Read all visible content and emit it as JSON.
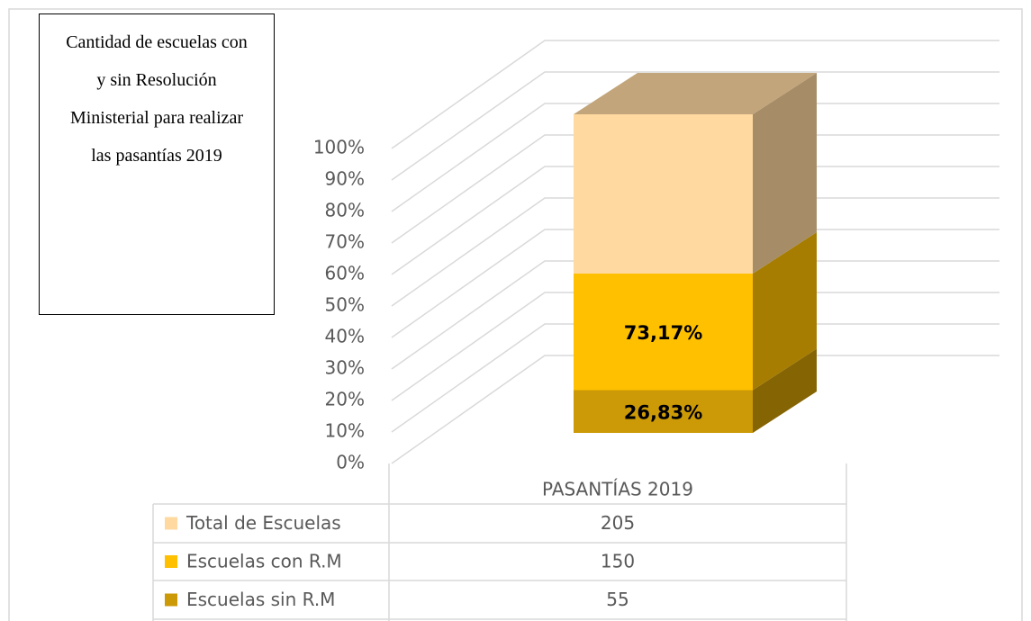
{
  "chart_data": {
    "type": "bar",
    "stacking": "percent",
    "title": "Cantidad de escuelas con y sin Resolución Ministerial para realizar las pasantías 2019",
    "categories": [
      "PASANTÍAS 2019"
    ],
    "series": [
      {
        "name": "Total de Escuelas",
        "color": "#ffd9a0",
        "values": [
          205
        ]
      },
      {
        "name": "Escuelas con R.M",
        "color": "#ffc000",
        "values": [
          150
        ],
        "data_labels": [
          {
            "value": 73.17,
            "label": "73,17%"
          }
        ]
      },
      {
        "name": "Escuelas sin R.M",
        "color": "#cc9a06",
        "values": [
          55
        ],
        "data_labels": [
          {
            "value": 26.83,
            "label": "26,83%"
          }
        ]
      }
    ],
    "ylim": [
      0,
      100
    ],
    "yticks": [
      {
        "value": 0,
        "label": "0%"
      },
      {
        "value": 10,
        "label": "10%"
      },
      {
        "value": 20,
        "label": "20%"
      },
      {
        "value": 30,
        "label": "30%"
      },
      {
        "value": 40,
        "label": "40%"
      },
      {
        "value": 50,
        "label": "50%"
      },
      {
        "value": 60,
        "label": "60%"
      },
      {
        "value": 70,
        "label": "70%"
      },
      {
        "value": 80,
        "label": "80%"
      },
      {
        "value": 90,
        "label": "90%"
      },
      {
        "value": 100,
        "label": "100%"
      }
    ],
    "grid": true,
    "data_table": true
  }
}
